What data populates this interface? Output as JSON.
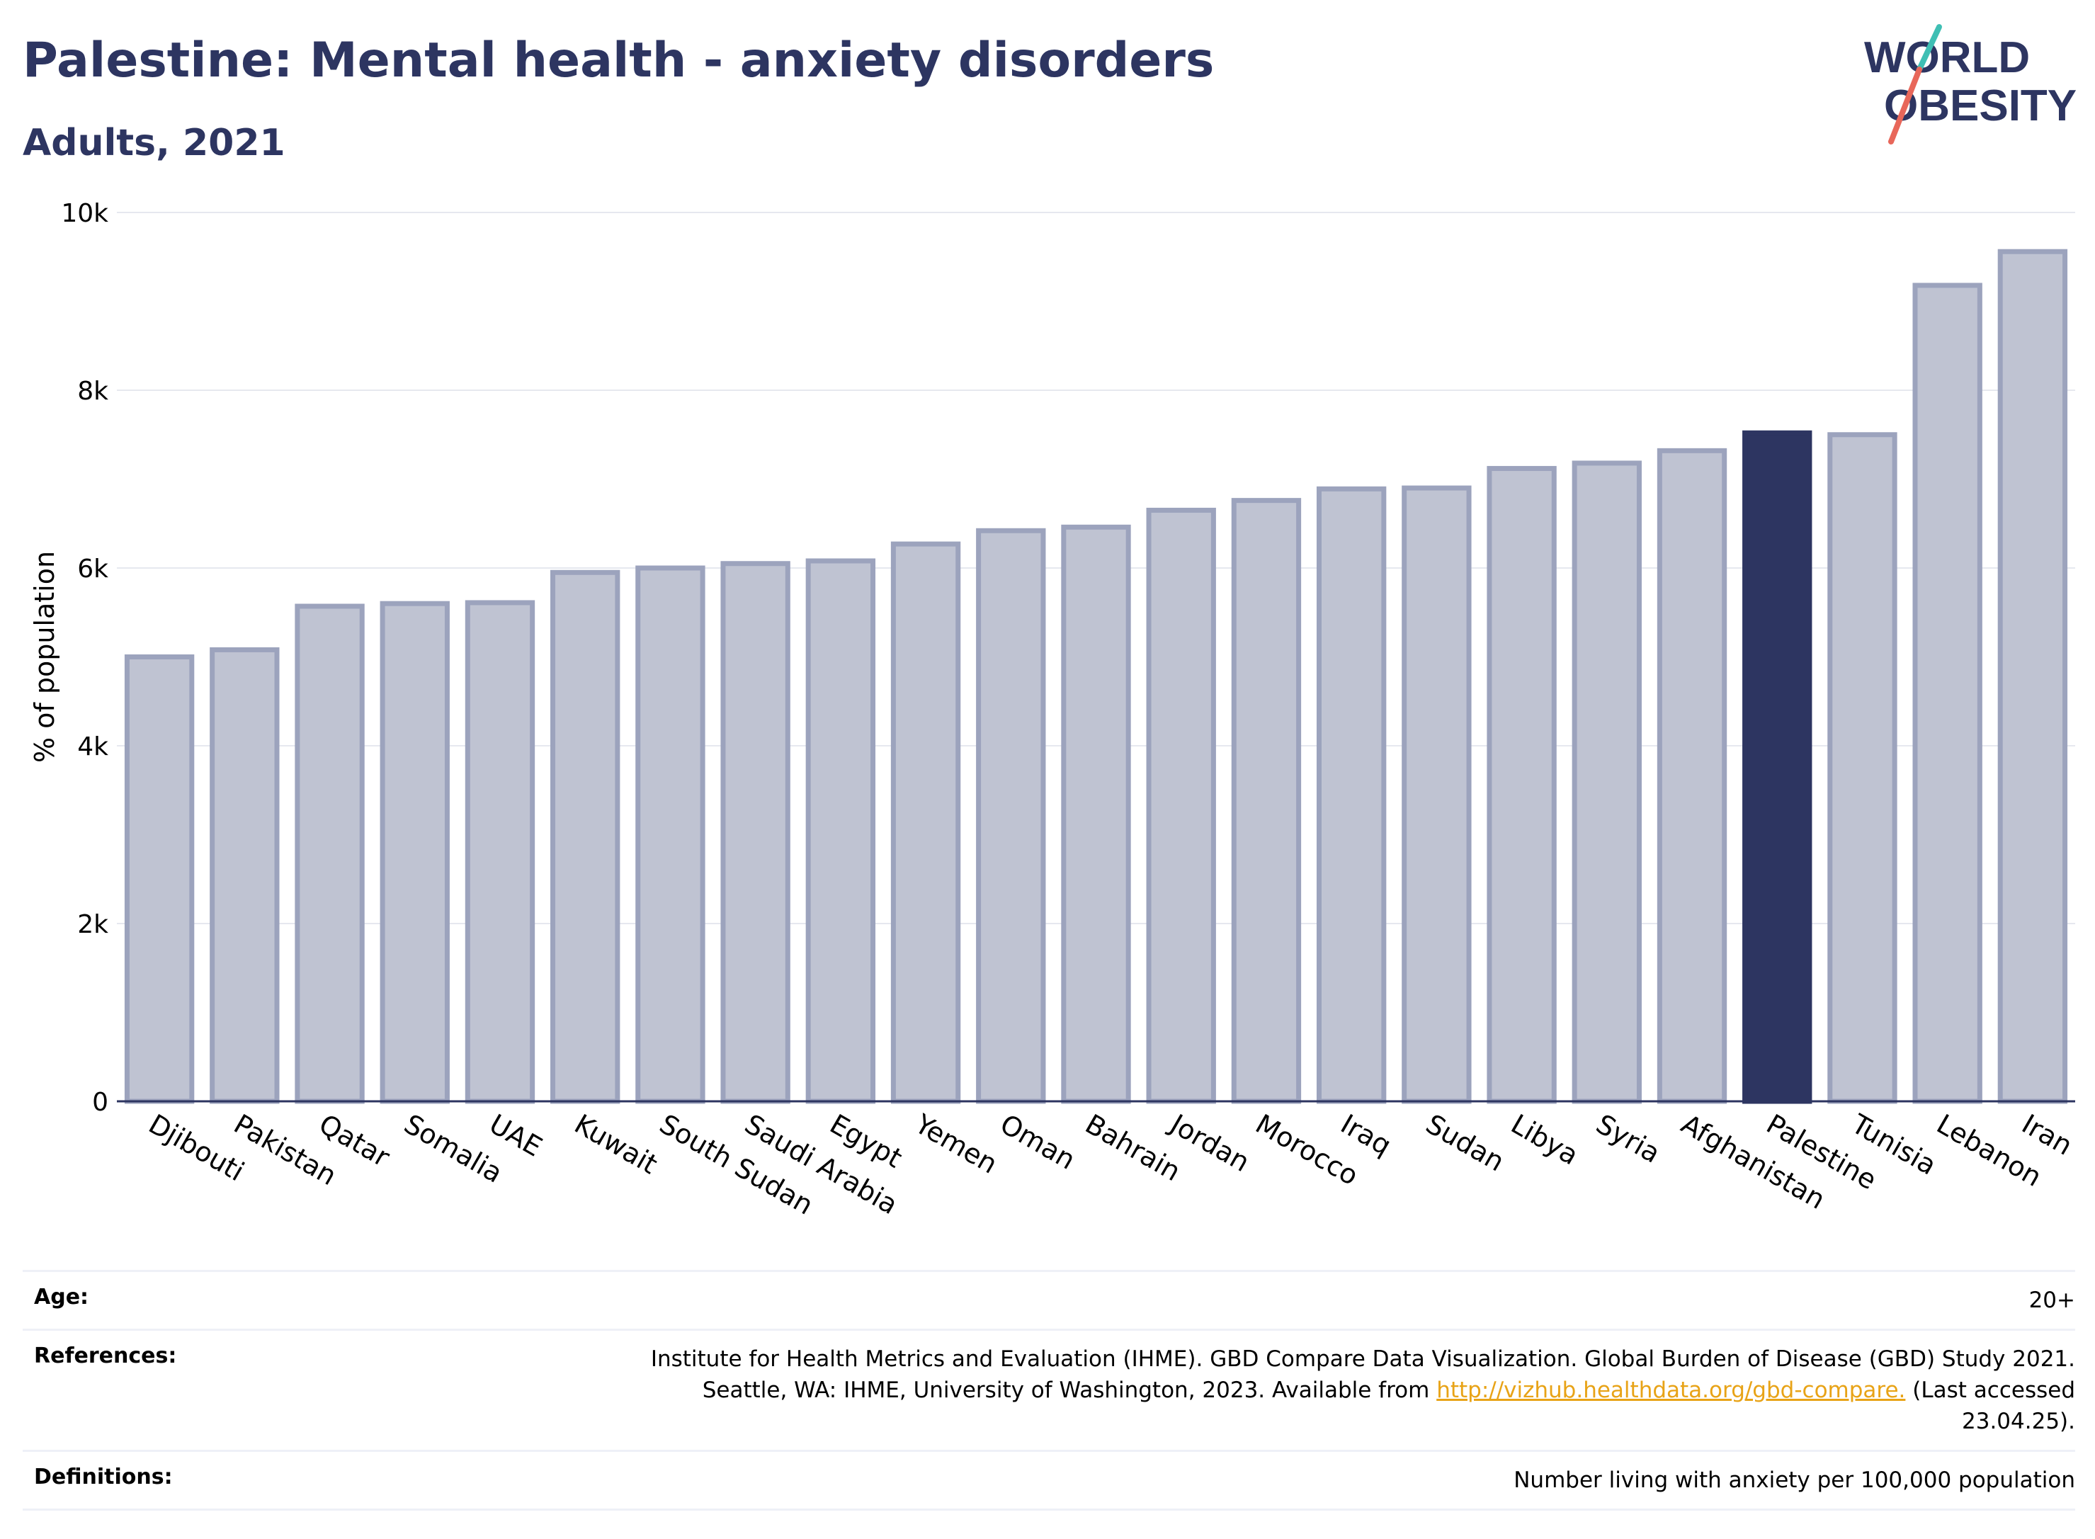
{
  "header": {
    "title": "Palestine: Mental health - anxiety disorders",
    "subtitle": "Adults, 2021"
  },
  "logo": {
    "line1": "WORLD",
    "line2": "OBESITY",
    "colors": {
      "text": "#2d3561",
      "slash_top": "#3fbfb4",
      "slash_bottom": "#e8675a"
    }
  },
  "chart_data": {
    "type": "bar",
    "ylabel": "% of population",
    "ylim": [
      0,
      10000
    ],
    "y_ticks": [
      0,
      2000,
      4000,
      6000,
      8000,
      10000
    ],
    "y_tick_labels": [
      "0",
      "2k",
      "4k",
      "6k",
      "8k",
      "10k"
    ],
    "grid": true,
    "highlight": "Palestine",
    "colors": {
      "bar": "#bfc3d2",
      "bar_border": "#9ca3bd",
      "highlight": "#2d3561"
    },
    "categories": [
      "Djibouti",
      "Pakistan",
      "Qatar",
      "Somalia",
      "UAE",
      "Kuwait",
      "South Sudan",
      "Saudi Arabia",
      "Egypt",
      "Yemen",
      "Oman",
      "Bahrain",
      "Jordan",
      "Morocco",
      "Iraq",
      "Sudan",
      "Libya",
      "Syria",
      "Afghanistan",
      "Palestine",
      "Tunisia",
      "Lebanon",
      "Iran"
    ],
    "values": [
      5000,
      5080,
      5570,
      5600,
      5610,
      5950,
      6000,
      6050,
      6080,
      6270,
      6420,
      6460,
      6650,
      6760,
      6890,
      6900,
      7120,
      7180,
      7320,
      7520,
      7500,
      9180,
      9560
    ]
  },
  "info_table": {
    "age_label": "Age:",
    "age_value": "20+",
    "references_label": "References:",
    "references_line1": "Institute for Health Metrics and Evaluation (IHME). GBD Compare Data Visualization. Global Burden of Disease (GBD) Study 2021.",
    "references_line2_prefix": "Seattle, WA: IHME, University of Washington, 2023. Available from",
    "references_link": "http://vizhub.healthdata.org/gbd-compare.",
    "references_suffix": "(Last accessed 23.04.25).",
    "definitions_label": "Definitions:",
    "definitions_value": "Number living with anxiety per 100,000 population"
  }
}
